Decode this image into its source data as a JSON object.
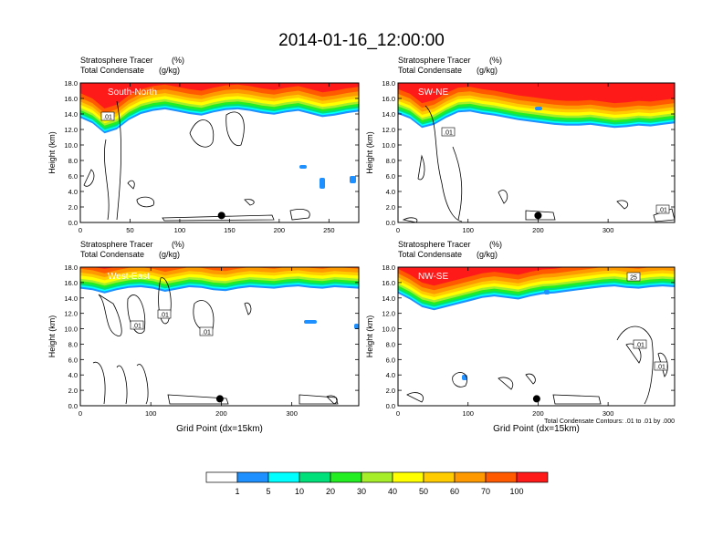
{
  "title": "2014-01-16_12:00:00",
  "colors": {
    "levels": [
      "#ffffff",
      "#1e90ff",
      "#00ffff",
      "#00e07a",
      "#22ee22",
      "#a6ee2a",
      "#ffff00",
      "#ffcc00",
      "#ff9900",
      "#ff5a00",
      "#ff1a1a"
    ],
    "contour": "#000000",
    "marker": "#000000"
  },
  "chart_data": [
    {
      "type": "heatmap",
      "panel": "top-left",
      "cross_section": "South-North",
      "title_line1": "Stratosphere Tracer",
      "units_line1": "(%)",
      "title_line2": "Total Condensate",
      "units_line2": "(g/kg)",
      "ylabel": "Height (km)",
      "xlabel": "",
      "xlim": [
        0,
        280
      ],
      "ylim": [
        0,
        18
      ],
      "xticks": [
        "0",
        "50",
        "100",
        "150",
        "200",
        "250"
      ],
      "yticks": [
        "0.0",
        "2.0",
        "4.0",
        "6.0",
        "8.0",
        "10.0",
        "12.0",
        "14.0",
        "16.0",
        "18.0"
      ],
      "marker_x": 142,
      "contour_labels": [
        ".01"
      ],
      "tracer_bottom_km": [
        13.5,
        12.8,
        11.5,
        12.0,
        13.2,
        14.0,
        14.4,
        14.6,
        14.3,
        14.0,
        13.8,
        14.2,
        14.5,
        14.6,
        14.4,
        14.1,
        13.9,
        14.2,
        14.4,
        14.0,
        13.6,
        13.8,
        14.1,
        14.3
      ],
      "note": ""
    },
    {
      "type": "heatmap",
      "panel": "top-right",
      "cross_section": "SW-NE",
      "title_line1": "Stratosphere Tracer",
      "units_line1": "(%)",
      "title_line2": "Total Condensate",
      "units_line2": "(g/kg)",
      "ylabel": "Height (km)",
      "xlabel": "",
      "xlim": [
        0,
        395
      ],
      "ylim": [
        0,
        18
      ],
      "xticks": [
        "0",
        "100",
        "200",
        "300"
      ],
      "yticks": [
        "0.0",
        "2.0",
        "4.0",
        "6.0",
        "8.0",
        "10.0",
        "12.0",
        "14.0",
        "16.0",
        "18.0"
      ],
      "marker_x": 200,
      "contour_labels": [
        ".01",
        ".01"
      ],
      "tracer_bottom_km": [
        14.0,
        13.4,
        12.2,
        12.6,
        13.5,
        14.2,
        14.3,
        14.0,
        13.8,
        13.5,
        13.2,
        13.0,
        12.8,
        12.6,
        12.5,
        12.5,
        12.6,
        12.4,
        12.2,
        12.3,
        12.5,
        12.4,
        12.6,
        12.8
      ],
      "note": ""
    },
    {
      "type": "heatmap",
      "panel": "bottom-left",
      "cross_section": "West-East",
      "title_line1": "Stratosphere Tracer",
      "units_line1": "(%)",
      "title_line2": "Total Condensate",
      "units_line2": "(g/kg)",
      "ylabel": "Height (km)",
      "xlabel": "Grid Point (dx=15km)",
      "xlim": [
        0,
        395
      ],
      "ylim": [
        0,
        18
      ],
      "xticks": [
        "0",
        "100",
        "200",
        "300"
      ],
      "yticks": [
        "0.0",
        "2.0",
        "4.0",
        "6.0",
        "8.0",
        "10.0",
        "12.0",
        "14.0",
        "16.0",
        "18.0"
      ],
      "marker_x": 198,
      "contour_labels": [
        ".01",
        ".01",
        ".01"
      ],
      "tracer_bottom_km": [
        15.2,
        15.0,
        14.6,
        15.0,
        15.3,
        15.4,
        15.2,
        14.8,
        15.1,
        15.4,
        15.3,
        15.0,
        14.9,
        15.2,
        15.4,
        15.3,
        15.2,
        15.4,
        15.5,
        15.3,
        15.2,
        15.4,
        15.3,
        15.2
      ],
      "note": ""
    },
    {
      "type": "heatmap",
      "panel": "bottom-right",
      "cross_section": "NW-SE",
      "title_line1": "Stratosphere Tracer",
      "units_line1": "(%)",
      "title_line2": "Total Condensate",
      "units_line2": "(g/kg)",
      "ylabel": "Height (km)",
      "xlabel": "Grid Point (dx=15km)",
      "xlim": [
        0,
        395
      ],
      "ylim": [
        0,
        18
      ],
      "xticks": [
        "0",
        "100",
        "200",
        "300"
      ],
      "yticks": [
        "0.0",
        "2.0",
        "4.0",
        "6.0",
        "8.0",
        "10.0",
        "12.0",
        "14.0",
        "16.0",
        "18.0"
      ],
      "marker_x": 198,
      "contour_labels": [
        "25",
        ".01",
        ".01"
      ],
      "tracer_bottom_km": [
        14.6,
        13.8,
        12.8,
        12.4,
        12.8,
        13.2,
        13.6,
        14.0,
        14.2,
        14.0,
        13.8,
        14.2,
        14.5,
        14.6,
        14.8,
        15.0,
        15.2,
        15.4,
        15.5,
        15.3,
        15.2,
        15.4,
        15.5,
        15.4
      ],
      "note": "Total Condensate Contours: .01 to .01 by .000"
    }
  ],
  "legend": {
    "labels": [
      "1",
      "5",
      "10",
      "20",
      "30",
      "40",
      "50",
      "60",
      "70",
      "100"
    ]
  }
}
